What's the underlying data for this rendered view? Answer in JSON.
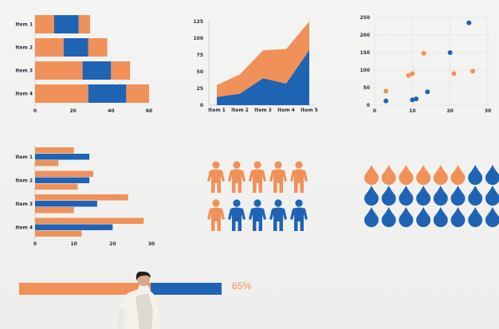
{
  "colors": {
    "orange": "#f0915a",
    "blue": "#1f64b4"
  },
  "chart_data": [
    {
      "type": "bar",
      "orientation": "horizontal",
      "stacked": true,
      "categories": [
        "Item 1",
        "Item 2",
        "Item 3",
        "Item 4"
      ],
      "series": [
        {
          "values": [
            10,
            15,
            25,
            28
          ]
        },
        {
          "values": [
            13,
            13,
            15,
            20
          ]
        },
        {
          "values": [
            6,
            10,
            10,
            12
          ]
        }
      ],
      "xticks": [
        "0",
        "20",
        "40",
        "60"
      ],
      "xlim": [
        0,
        60
      ]
    },
    {
      "type": "area",
      "categories": [
        "Item 1",
        "Item 2",
        "Item 3",
        "Item 4",
        "Item 5"
      ],
      "series": [
        {
          "values": [
            12,
            17,
            40,
            32,
            82
          ]
        },
        {
          "values": [
            30,
            46,
            82,
            84,
            125
          ]
        }
      ],
      "yticks": [
        "0",
        "25",
        "50",
        "75",
        "100",
        "125"
      ],
      "ylim": [
        0,
        125
      ]
    },
    {
      "type": "scatter",
      "series": [
        {
          "points": [
            [
              3,
              40
            ],
            [
              9,
              85
            ],
            [
              10,
              90
            ],
            [
              13,
              148
            ],
            [
              21,
              90
            ],
            [
              26,
              97
            ]
          ]
        },
        {
          "points": [
            [
              3,
              12
            ],
            [
              10,
              15
            ],
            [
              11,
              18
            ],
            [
              14,
              38
            ],
            [
              20,
              150
            ],
            [
              25,
              235
            ]
          ]
        }
      ],
      "xticks": [
        "0",
        "10",
        "20",
        "30"
      ],
      "yticks": [
        "0",
        "50",
        "100",
        "150",
        "200",
        "250"
      ],
      "xlim": [
        0,
        30
      ],
      "ylim": [
        0,
        250
      ]
    },
    {
      "type": "bar",
      "orientation": "horizontal",
      "grouped": true,
      "categories": [
        "Item 1",
        "Item 2",
        "Item 3",
        "Item 4"
      ],
      "series": [
        {
          "values": [
            10,
            15,
            24,
            28
          ]
        },
        {
          "values": [
            14,
            14,
            16,
            20
          ]
        },
        {
          "values": [
            6,
            11,
            10,
            12
          ]
        }
      ],
      "xticks": [
        "0",
        "10",
        "20",
        "30"
      ],
      "xlim": [
        0,
        30
      ]
    }
  ],
  "people_chart": {
    "total": 10,
    "blue": 4
  },
  "drops_chart": {
    "total": 24,
    "orange": 6
  },
  "progress": {
    "value": 0.65,
    "label": "65%"
  }
}
